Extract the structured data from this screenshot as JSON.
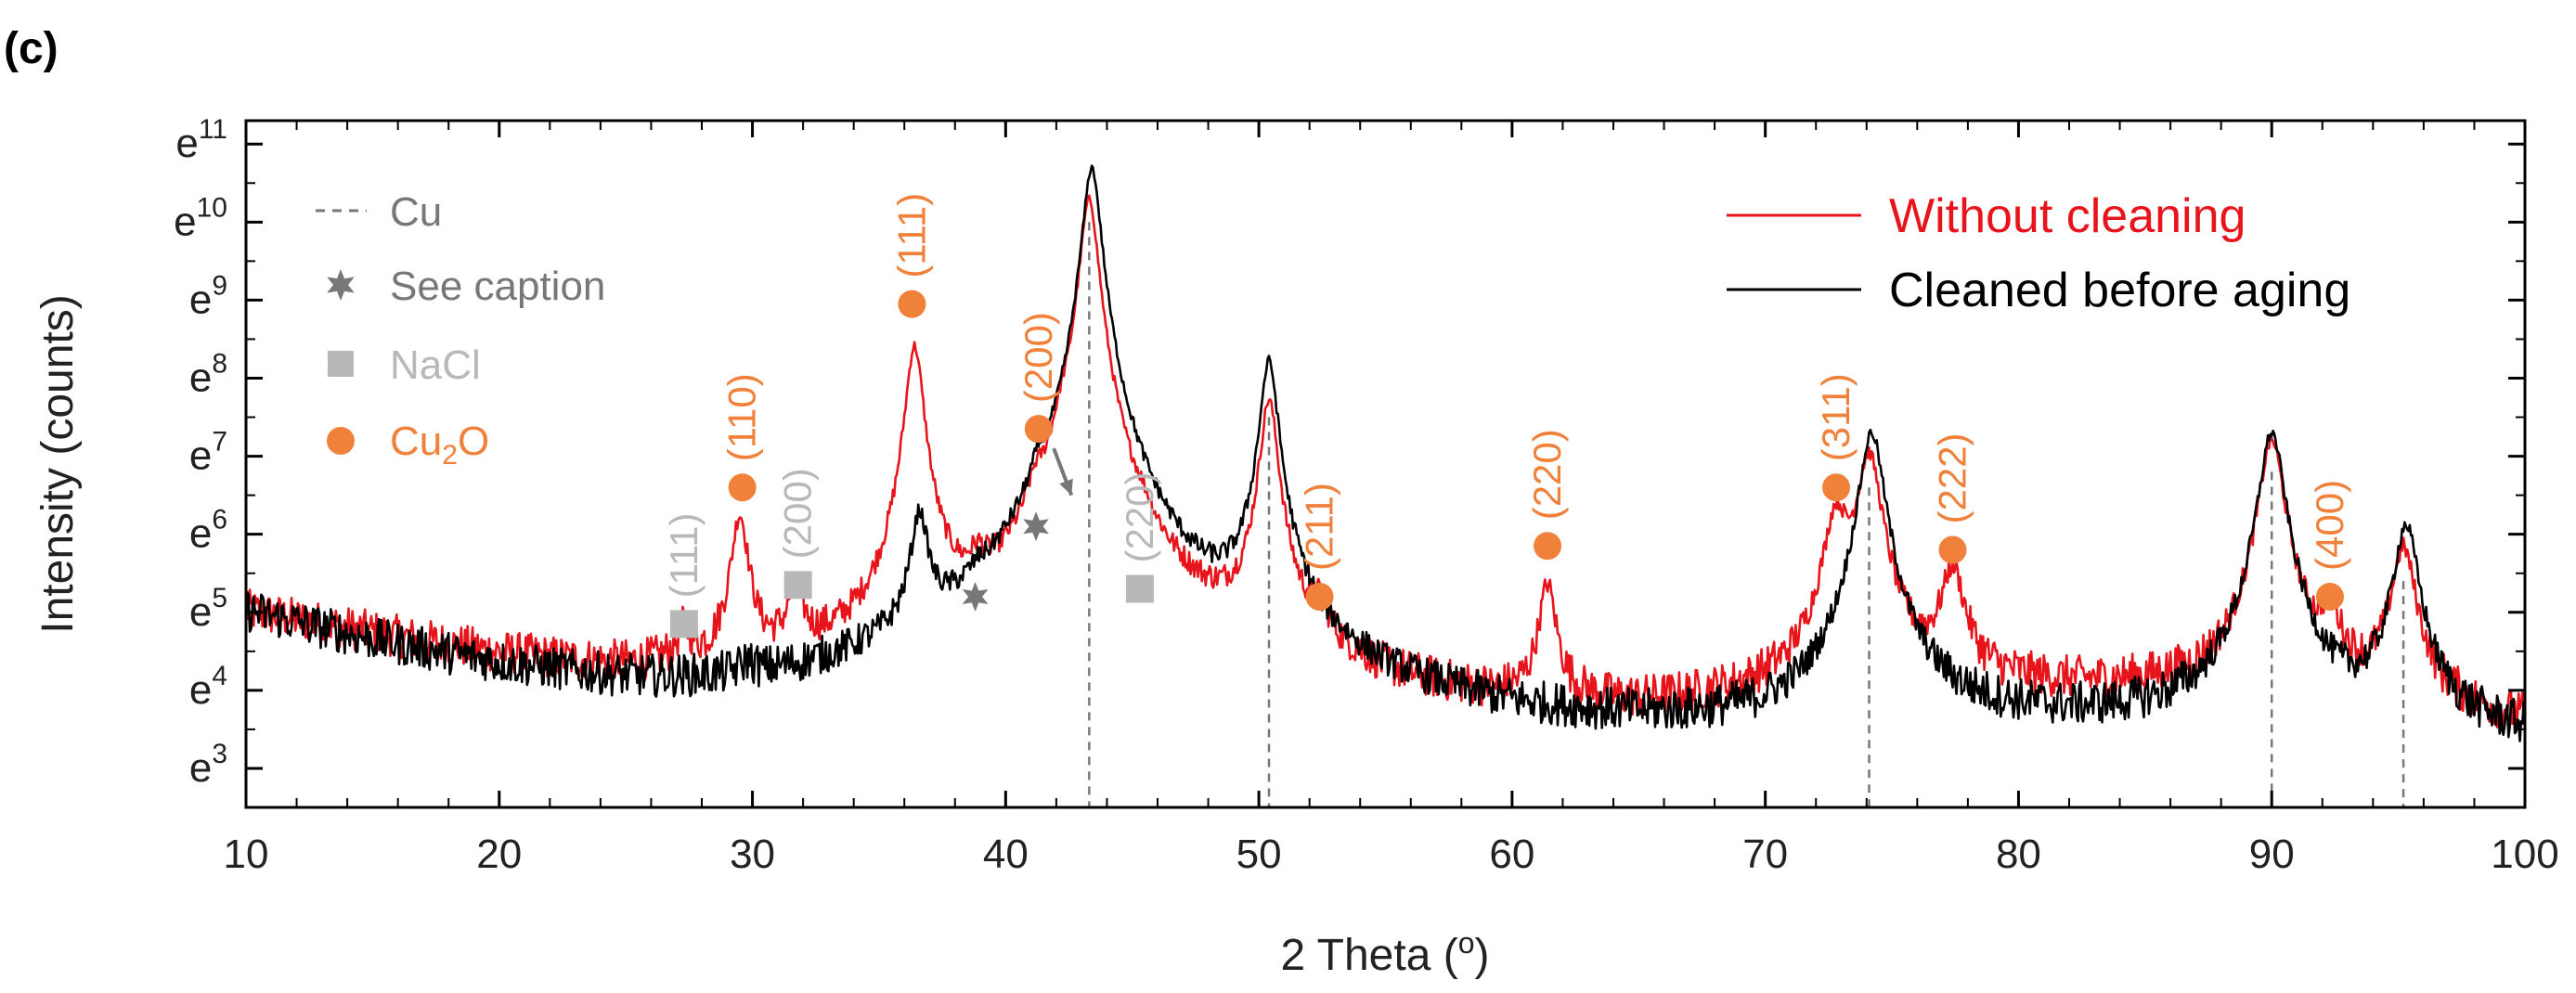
{
  "panel_label": "(c)",
  "chart_data": {
    "type": "line",
    "xlabel": "2 Theta (",
    "xlabel_degree": "o",
    "xlabel_close": ")",
    "ylabel": "Intensity (counts)",
    "xlim": [
      10,
      100
    ],
    "x_ticks": [
      10,
      20,
      30,
      40,
      50,
      60,
      70,
      80,
      90,
      100
    ],
    "y_scale": "ln",
    "ylim_ln": [
      2.5,
      11.3
    ],
    "y_ticks": [
      {
        "base": "e",
        "exp": "3",
        "ln": 3
      },
      {
        "base": "e",
        "exp": "4",
        "ln": 4
      },
      {
        "base": "e",
        "exp": "5",
        "ln": 5
      },
      {
        "base": "e",
        "exp": "6",
        "ln": 6
      },
      {
        "base": "e",
        "exp": "7",
        "ln": 7
      },
      {
        "base": "e",
        "exp": "8",
        "ln": 8
      },
      {
        "base": "e",
        "exp": "9",
        "ln": 9
      },
      {
        "base": "e",
        "exp": "10",
        "ln": 10
      },
      {
        "base": "e",
        "exp": "11",
        "ln": 11
      }
    ],
    "grid": false,
    "series": [
      {
        "name": "Without cleaning",
        "color": "#e8141c",
        "baseline_ln": [
          [
            10,
            5.0
          ],
          [
            15,
            4.7
          ],
          [
            20,
            4.4
          ],
          [
            25,
            4.15
          ],
          [
            30,
            4.0
          ],
          [
            35,
            4.0
          ],
          [
            40,
            4.1
          ],
          [
            45,
            4.2
          ],
          [
            50,
            4.0
          ],
          [
            55,
            3.7
          ],
          [
            60,
            3.6
          ],
          [
            65,
            3.6
          ],
          [
            70,
            3.75
          ],
          [
            75,
            3.9
          ],
          [
            80,
            3.95
          ],
          [
            85,
            3.95
          ],
          [
            90,
            3.85
          ],
          [
            95,
            3.7
          ],
          [
            100,
            3.5
          ]
        ],
        "peaks": [
          {
            "x": 27.3,
            "ln": 4.6
          },
          {
            "x": 29.5,
            "ln": 6.2
          },
          {
            "x": 31.7,
            "ln": 5.1
          },
          {
            "x": 36.4,
            "ln": 8.4
          },
          {
            "x": 38.9,
            "ln": 4.9
          },
          {
            "x": 41.2,
            "ln": 5.7
          },
          {
            "x": 42.2,
            "ln": 6.2
          },
          {
            "x": 43.3,
            "ln": 10.3
          },
          {
            "x": 45.4,
            "ln": 4.8
          },
          {
            "x": 50.4,
            "ln": 7.7
          },
          {
            "x": 52.4,
            "ln": 4.6
          },
          {
            "x": 61.4,
            "ln": 5.3
          },
          {
            "x": 72.8,
            "ln": 6.2
          },
          {
            "x": 74.1,
            "ln": 7.0
          },
          {
            "x": 77.4,
            "ln": 5.5
          },
          {
            "x": 90.0,
            "ln": 7.2
          },
          {
            "x": 92.3,
            "ln": 4.8
          },
          {
            "x": 95.2,
            "ln": 5.8
          }
        ]
      },
      {
        "name": "Cleaned before aging",
        "color": "#000000",
        "baseline_ln": [
          [
            10,
            5.0
          ],
          [
            15,
            4.6
          ],
          [
            20,
            4.25
          ],
          [
            25,
            3.95
          ],
          [
            30,
            3.75
          ],
          [
            35,
            3.7
          ],
          [
            40,
            3.75
          ],
          [
            45,
            3.95
          ],
          [
            50,
            3.75
          ],
          [
            55,
            3.4
          ],
          [
            60,
            3.3
          ],
          [
            65,
            3.3
          ],
          [
            70,
            3.35
          ],
          [
            75,
            3.5
          ],
          [
            80,
            3.5
          ],
          [
            85,
            3.5
          ],
          [
            90,
            3.45
          ],
          [
            95,
            3.4
          ],
          [
            100,
            3.3
          ]
        ],
        "peaks": [
          {
            "x": 29.8,
            "ln": 4.0
          },
          {
            "x": 36.6,
            "ln": 6.1
          },
          {
            "x": 38.9,
            "ln": 4.2
          },
          {
            "x": 41.3,
            "ln": 5.6
          },
          {
            "x": 43.4,
            "ln": 10.7
          },
          {
            "x": 50.4,
            "ln": 8.2
          },
          {
            "x": 74.2,
            "ln": 7.3
          },
          {
            "x": 90.0,
            "ln": 7.3
          },
          {
            "x": 95.3,
            "ln": 6.1
          }
        ]
      }
    ],
    "cu_lines": [
      {
        "x": 43.3,
        "ln_top": 10.0
      },
      {
        "x": 50.4,
        "ln_top": 7.5
      },
      {
        "x": 74.1,
        "ln_top": 6.6
      },
      {
        "x": 90.0,
        "ln_top": 6.8
      },
      {
        "x": 95.2,
        "ln_top": 5.4
      }
    ],
    "legend_markers": {
      "placement": "top-left",
      "items": [
        {
          "symbol": "dashed-line",
          "label": "Cu",
          "color": "#777777"
        },
        {
          "symbol": "star",
          "label": "See caption",
          "color": "#777777"
        },
        {
          "symbol": "square",
          "label": "NaCl",
          "color": "#b8b8b8"
        },
        {
          "symbol": "circle",
          "label": "Cu",
          "label_sub": "2",
          "label_tail": "O",
          "color": "#f0813b"
        }
      ]
    },
    "legend_series": {
      "placement": "top-right"
    },
    "annotations": [
      {
        "kind": "square",
        "x": 27.3,
        "ln": 4.85,
        "label": "(111)",
        "color": "#b8b8b8"
      },
      {
        "kind": "square",
        "x": 31.8,
        "ln": 5.35,
        "label": "(200)",
        "color": "#b8b8b8"
      },
      {
        "kind": "square",
        "x": 45.3,
        "ln": 5.3,
        "label": "(220)",
        "color": "#b8b8b8"
      },
      {
        "kind": "circle",
        "x": 29.6,
        "ln": 6.6,
        "label": "(110)",
        "color": "#f0813b"
      },
      {
        "kind": "circle",
        "x": 36.3,
        "ln": 8.95,
        "label": "(111)",
        "color": "#f0813b"
      },
      {
        "kind": "circle",
        "x": 41.3,
        "ln": 7.35,
        "label": "(200)",
        "color": "#f0813b"
      },
      {
        "kind": "circle",
        "x": 52.4,
        "ln": 5.2,
        "label": "(211)",
        "color": "#f0813b"
      },
      {
        "kind": "circle",
        "x": 61.4,
        "ln": 5.85,
        "label": "(220)",
        "color": "#f0813b"
      },
      {
        "kind": "circle",
        "x": 72.8,
        "ln": 6.6,
        "label": "(311)",
        "color": "#f0813b"
      },
      {
        "kind": "circle",
        "x": 77.4,
        "ln": 5.8,
        "label": "(222)",
        "color": "#f0813b"
      },
      {
        "kind": "circle",
        "x": 92.3,
        "ln": 5.2,
        "label": "(400)",
        "color": "#f0813b"
      },
      {
        "kind": "star",
        "x": 38.8,
        "ln": 5.2,
        "color": "#777777"
      },
      {
        "kind": "star",
        "x": 41.2,
        "ln": 6.1,
        "color": "#777777"
      }
    ],
    "arrow": {
      "from_x": 41.9,
      "from_ln": 7.1,
      "to_x": 42.6,
      "to_ln": 6.5,
      "color": "#777777"
    }
  }
}
